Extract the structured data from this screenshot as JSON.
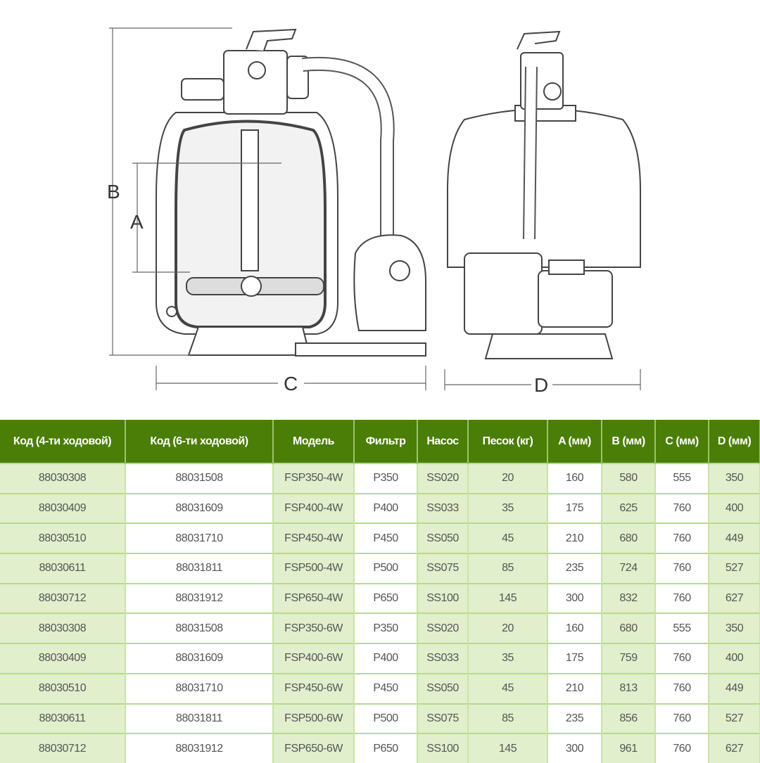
{
  "diagram": {
    "dimension_labels": {
      "a": "A",
      "b": "B",
      "c": "C",
      "d": "D"
    }
  },
  "table": {
    "headers": [
      "Код (4-ти ходовой)",
      "Код (6-ти ходовой)",
      "Модель",
      "Фильтр",
      "Насос",
      "Песок (кг)",
      "A (мм)",
      "B (мм)",
      "C (мм)",
      "D (мм)"
    ],
    "rows": [
      [
        "88030308",
        "88031508",
        "FSP350-4W",
        "P350",
        "SS020",
        "20",
        "160",
        "580",
        "555",
        "350"
      ],
      [
        "88030409",
        "88031609",
        "FSP400-4W",
        "P400",
        "SS033",
        "35",
        "175",
        "625",
        "760",
        "400"
      ],
      [
        "88030510",
        "88031710",
        "FSP450-4W",
        "P450",
        "SS050",
        "45",
        "210",
        "680",
        "760",
        "449"
      ],
      [
        "88030611",
        "88031811",
        "FSP500-4W",
        "P500",
        "SS075",
        "85",
        "235",
        "724",
        "760",
        "527"
      ],
      [
        "88030712",
        "88031912",
        "FSP650-4W",
        "P650",
        "SS100",
        "145",
        "300",
        "832",
        "760",
        "627"
      ],
      [
        "88030308",
        "88031508",
        "FSP350-6W",
        "P350",
        "SS020",
        "20",
        "160",
        "680",
        "555",
        "350"
      ],
      [
        "88030409",
        "88031609",
        "FSP400-6W",
        "P400",
        "SS033",
        "35",
        "175",
        "759",
        "760",
        "400"
      ],
      [
        "88030510",
        "88031710",
        "FSP450-6W",
        "P450",
        "SS050",
        "45",
        "210",
        "813",
        "760",
        "449"
      ],
      [
        "88030611",
        "88031811",
        "FSP500-6W",
        "P500",
        "SS075",
        "85",
        "235",
        "856",
        "760",
        "527"
      ],
      [
        "88030712",
        "88031912",
        "FSP650-6W",
        "P650",
        "SS100",
        "145",
        "300",
        "961",
        "760",
        "627"
      ]
    ]
  },
  "colors": {
    "header_bg": "#4a7e06",
    "shaded_col": "#e1efcc",
    "grid": "#b7d98c"
  }
}
